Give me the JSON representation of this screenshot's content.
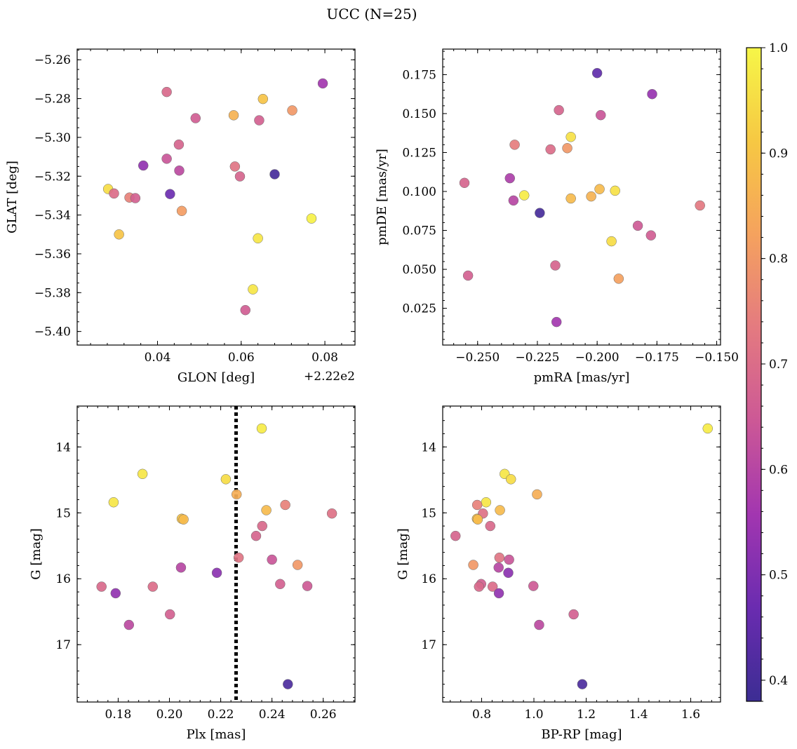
{
  "figure": {
    "title": "UCC (N=25)"
  },
  "colorbar": {
    "vmin": 0.38,
    "vmax": 1.0,
    "ticks": [
      0.4,
      0.5,
      0.6,
      0.7,
      0.8,
      0.9,
      1.0
    ],
    "tick_labels": [
      "0.4",
      "0.5",
      "0.6",
      "0.7",
      "0.8",
      "0.9",
      "1.0"
    ],
    "colormap": "plasma",
    "stops": [
      "#3c2d93",
      "#6a2cb0",
      "#a236b0",
      "#cc5896",
      "#e47a80",
      "#f5a25e",
      "#f6c843",
      "#f6f648"
    ]
  },
  "chart_data": [
    {
      "type": "scatter",
      "name": "glon-glat",
      "xlabel": "GLON [deg]",
      "ylabel": "GLAT [deg]",
      "x_offset_label": "+2.22e2",
      "xlim": [
        0.0208,
        0.0872
      ],
      "ylim": [
        -5.407,
        -5.2545
      ],
      "y_inverted": false,
      "xticks": [
        0.04,
        0.06,
        0.08
      ],
      "xtick_labels": [
        "0.04",
        "0.06",
        "0.08"
      ],
      "yticks": [
        -5.26,
        -5.28,
        -5.3,
        -5.32,
        -5.34,
        -5.36,
        -5.38,
        -5.4
      ],
      "ytick_labels": [
        "−5.26",
        "−5.28",
        "−5.30",
        "−5.32",
        "−5.34",
        "−5.36",
        "−5.38",
        "−5.40"
      ],
      "x_minor_step": 0.004,
      "y_minor_step": 0.005,
      "vline": null,
      "points": [
        {
          "x": 0.0795,
          "y": -5.2722,
          "c": 0.56
        },
        {
          "x": 0.0422,
          "y": -5.2766,
          "c": 0.69
        },
        {
          "x": 0.0652,
          "y": -5.2802,
          "c": 0.9
        },
        {
          "x": 0.0722,
          "y": -5.2861,
          "c": 0.8
        },
        {
          "x": 0.0582,
          "y": -5.2886,
          "c": 0.86
        },
        {
          "x": 0.0491,
          "y": -5.2901,
          "c": 0.66
        },
        {
          "x": 0.0643,
          "y": -5.2912,
          "c": 0.67
        },
        {
          "x": 0.0451,
          "y": -5.3037,
          "c": 0.68
        },
        {
          "x": 0.0422,
          "y": -5.311,
          "c": 0.64
        },
        {
          "x": 0.0366,
          "y": -5.3145,
          "c": 0.53
        },
        {
          "x": 0.0585,
          "y": -5.315,
          "c": 0.72
        },
        {
          "x": 0.0452,
          "y": -5.3171,
          "c": 0.61
        },
        {
          "x": 0.068,
          "y": -5.319,
          "c": 0.4
        },
        {
          "x": 0.0597,
          "y": -5.3201,
          "c": 0.68
        },
        {
          "x": 0.0282,
          "y": -5.3266,
          "c": 0.95
        },
        {
          "x": 0.0296,
          "y": -5.3289,
          "c": 0.7
        },
        {
          "x": 0.043,
          "y": -5.3292,
          "c": 0.47
        },
        {
          "x": 0.0333,
          "y": -5.331,
          "c": 0.75
        },
        {
          "x": 0.0347,
          "y": -5.3313,
          "c": 0.67
        },
        {
          "x": 0.0458,
          "y": -5.3379,
          "c": 0.81
        },
        {
          "x": 0.0768,
          "y": -5.3418,
          "c": 0.99
        },
        {
          "x": 0.0308,
          "y": -5.35,
          "c": 0.9
        },
        {
          "x": 0.064,
          "y": -5.352,
          "c": 0.97
        },
        {
          "x": 0.0628,
          "y": -5.3783,
          "c": 0.97
        },
        {
          "x": 0.061,
          "y": -5.389,
          "c": 0.66
        }
      ]
    },
    {
      "type": "scatter",
      "name": "pmra-pmde",
      "xlabel": "pmRA [mas/yr]",
      "ylabel": "pmDE [mas/yr]",
      "x_offset_label": "",
      "xlim": [
        -0.2646,
        -0.1484
      ],
      "ylim": [
        0.0014,
        0.1914
      ],
      "y_inverted": false,
      "xticks": [
        -0.25,
        -0.225,
        -0.2,
        -0.175,
        -0.15
      ],
      "xtick_labels": [
        "−0.250",
        "−0.225",
        "−0.200",
        "−0.175",
        "−0.150"
      ],
      "yticks": [
        0.025,
        0.05,
        0.075,
        0.1,
        0.125,
        0.15,
        0.175
      ],
      "ytick_labels": [
        "0.025",
        "0.050",
        "0.075",
        "0.100",
        "0.125",
        "0.150",
        "0.175"
      ],
      "x_minor_step": 0.005,
      "y_minor_step": 0.005,
      "vline": null,
      "points": [
        {
          "x": -0.2,
          "y": 0.176,
          "c": 0.45
        },
        {
          "x": -0.177,
          "y": 0.1625,
          "c": 0.54
        },
        {
          "x": -0.216,
          "y": 0.1522,
          "c": 0.68
        },
        {
          "x": -0.1985,
          "y": 0.149,
          "c": 0.64
        },
        {
          "x": -0.211,
          "y": 0.135,
          "c": 0.96
        },
        {
          "x": -0.2345,
          "y": 0.13,
          "c": 0.74
        },
        {
          "x": -0.2125,
          "y": 0.1278,
          "c": 0.8
        },
        {
          "x": -0.2195,
          "y": 0.127,
          "c": 0.7
        },
        {
          "x": -0.2365,
          "y": 0.1085,
          "c": 0.58
        },
        {
          "x": -0.2555,
          "y": 0.1055,
          "c": 0.68
        },
        {
          "x": -0.199,
          "y": 0.1015,
          "c": 0.88
        },
        {
          "x": -0.1925,
          "y": 0.1005,
          "c": 0.96
        },
        {
          "x": -0.2305,
          "y": 0.0975,
          "c": 0.98
        },
        {
          "x": -0.2025,
          "y": 0.0968,
          "c": 0.86
        },
        {
          "x": -0.211,
          "y": 0.0955,
          "c": 0.88
        },
        {
          "x": -0.235,
          "y": 0.0942,
          "c": 0.6
        },
        {
          "x": -0.157,
          "y": 0.091,
          "c": 0.73
        },
        {
          "x": -0.224,
          "y": 0.0862,
          "c": 0.4
        },
        {
          "x": -0.183,
          "y": 0.078,
          "c": 0.65
        },
        {
          "x": -0.1775,
          "y": 0.0718,
          "c": 0.66
        },
        {
          "x": -0.194,
          "y": 0.068,
          "c": 0.95
        },
        {
          "x": -0.2175,
          "y": 0.0525,
          "c": 0.68
        },
        {
          "x": -0.254,
          "y": 0.046,
          "c": 0.67
        },
        {
          "x": -0.191,
          "y": 0.044,
          "c": 0.82
        },
        {
          "x": -0.217,
          "y": 0.0162,
          "c": 0.56
        }
      ]
    },
    {
      "type": "scatter",
      "name": "plx-g",
      "xlabel": "Plx [mas]",
      "ylabel": "G [mag]",
      "x_offset_label": "",
      "xlim": [
        0.164,
        0.2724
      ],
      "ylim": [
        17.87,
        13.38
      ],
      "y_inverted": true,
      "xticks": [
        0.18,
        0.2,
        0.22,
        0.24,
        0.26
      ],
      "xtick_labels": [
        "0.18",
        "0.20",
        "0.22",
        "0.24",
        "0.26"
      ],
      "yticks": [
        14,
        15,
        16,
        17
      ],
      "ytick_labels": [
        "14",
        "15",
        "16",
        "17"
      ],
      "x_minor_step": 0.004,
      "y_minor_step": 0.2,
      "vline": 0.226,
      "points": [
        {
          "x": 0.236,
          "y": 13.72,
          "c": 0.98
        },
        {
          "x": 0.1895,
          "y": 14.41,
          "c": 0.97
        },
        {
          "x": 0.222,
          "y": 14.49,
          "c": 0.95
        },
        {
          "x": 0.2262,
          "y": 14.72,
          "c": 0.85
        },
        {
          "x": 0.1782,
          "y": 14.84,
          "c": 0.97
        },
        {
          "x": 0.2452,
          "y": 14.88,
          "c": 0.75
        },
        {
          "x": 0.2378,
          "y": 14.96,
          "c": 0.88
        },
        {
          "x": 0.2634,
          "y": 15.01,
          "c": 0.71
        },
        {
          "x": 0.2048,
          "y": 15.09,
          "c": 0.9
        },
        {
          "x": 0.2055,
          "y": 15.1,
          "c": 0.88
        },
        {
          "x": 0.2362,
          "y": 15.2,
          "c": 0.69
        },
        {
          "x": 0.2338,
          "y": 15.35,
          "c": 0.68
        },
        {
          "x": 0.227,
          "y": 15.68,
          "c": 0.72
        },
        {
          "x": 0.24,
          "y": 15.71,
          "c": 0.64
        },
        {
          "x": 0.25,
          "y": 15.79,
          "c": 0.8
        },
        {
          "x": 0.2045,
          "y": 15.83,
          "c": 0.6
        },
        {
          "x": 0.2185,
          "y": 15.91,
          "c": 0.52
        },
        {
          "x": 0.2432,
          "y": 16.08,
          "c": 0.67
        },
        {
          "x": 0.1735,
          "y": 16.12,
          "c": 0.69
        },
        {
          "x": 0.1935,
          "y": 16.12,
          "c": 0.7
        },
        {
          "x": 0.2538,
          "y": 16.11,
          "c": 0.65
        },
        {
          "x": 0.179,
          "y": 16.22,
          "c": 0.53
        },
        {
          "x": 0.2002,
          "y": 16.54,
          "c": 0.67
        },
        {
          "x": 0.1842,
          "y": 16.7,
          "c": 0.61
        },
        {
          "x": 0.2462,
          "y": 17.6,
          "c": 0.41
        }
      ]
    },
    {
      "type": "scatter",
      "name": "bprp-g",
      "xlabel": "BP-RP [mag]",
      "ylabel": "G [mag]",
      "x_offset_label": "",
      "xlim": [
        0.651,
        1.714
      ],
      "ylim": [
        17.87,
        13.38
      ],
      "y_inverted": true,
      "xticks": [
        0.8,
        1.0,
        1.2,
        1.4,
        1.6
      ],
      "xtick_labels": [
        "0.8",
        "1.0",
        "1.2",
        "1.4",
        "1.6"
      ],
      "yticks": [
        14,
        15,
        16,
        17
      ],
      "ytick_labels": [
        "14",
        "15",
        "16",
        "17"
      ],
      "x_minor_step": 0.04,
      "y_minor_step": 0.2,
      "vline": null,
      "points": [
        {
          "x": 1.665,
          "y": 13.72,
          "c": 0.98
        },
        {
          "x": 0.888,
          "y": 14.41,
          "c": 0.97
        },
        {
          "x": 0.912,
          "y": 14.49,
          "c": 0.95
        },
        {
          "x": 1.012,
          "y": 14.72,
          "c": 0.85
        },
        {
          "x": 0.817,
          "y": 14.84,
          "c": 0.97
        },
        {
          "x": 0.783,
          "y": 14.88,
          "c": 0.75
        },
        {
          "x": 0.87,
          "y": 14.96,
          "c": 0.88
        },
        {
          "x": 0.805,
          "y": 15.01,
          "c": 0.71
        },
        {
          "x": 0.782,
          "y": 15.09,
          "c": 0.9
        },
        {
          "x": 0.785,
          "y": 15.1,
          "c": 0.88
        },
        {
          "x": 0.833,
          "y": 15.2,
          "c": 0.69
        },
        {
          "x": 0.7,
          "y": 15.35,
          "c": 0.68
        },
        {
          "x": 0.868,
          "y": 15.68,
          "c": 0.72
        },
        {
          "x": 0.905,
          "y": 15.71,
          "c": 0.64
        },
        {
          "x": 0.768,
          "y": 15.79,
          "c": 0.8
        },
        {
          "x": 0.865,
          "y": 15.83,
          "c": 0.6
        },
        {
          "x": 0.902,
          "y": 15.91,
          "c": 0.52
        },
        {
          "x": 0.798,
          "y": 16.08,
          "c": 0.67
        },
        {
          "x": 0.79,
          "y": 16.12,
          "c": 0.69
        },
        {
          "x": 0.842,
          "y": 16.12,
          "c": 0.7
        },
        {
          "x": 0.998,
          "y": 16.11,
          "c": 0.65
        },
        {
          "x": 0.866,
          "y": 16.22,
          "c": 0.53
        },
        {
          "x": 1.152,
          "y": 16.54,
          "c": 0.67
        },
        {
          "x": 1.02,
          "y": 16.7,
          "c": 0.61
        },
        {
          "x": 1.185,
          "y": 17.6,
          "c": 0.41
        }
      ]
    }
  ]
}
